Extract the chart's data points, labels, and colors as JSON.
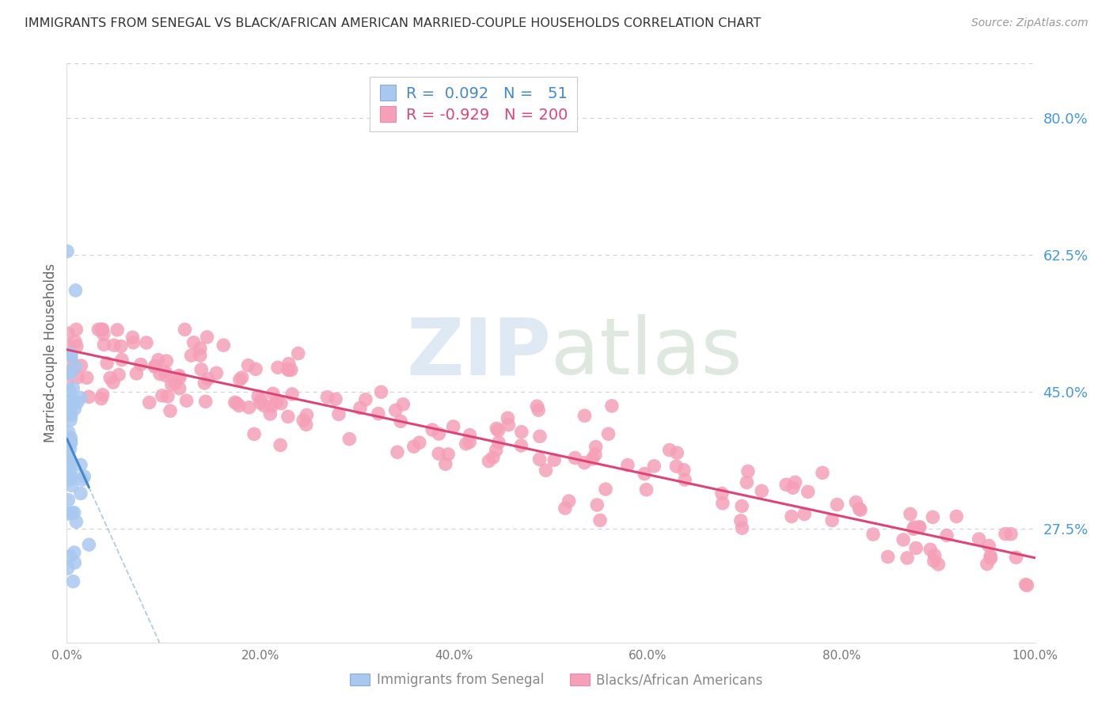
{
  "title": "IMMIGRANTS FROM SENEGAL VS BLACK/AFRICAN AMERICAN MARRIED-COUPLE HOUSEHOLDS CORRELATION CHART",
  "source": "Source: ZipAtlas.com",
  "ylabel": "Married-couple Households",
  "xlim": [
    0.0,
    100.0
  ],
  "ylim": [
    13.0,
    87.0
  ],
  "yticks": [
    27.5,
    45.0,
    62.5,
    80.0
  ],
  "xticks": [
    0.0,
    20.0,
    40.0,
    60.0,
    80.0,
    100.0
  ],
  "blue_R": 0.092,
  "blue_N": 51,
  "pink_R": -0.929,
  "pink_N": 200,
  "blue_color": "#a8c8f0",
  "pink_color": "#f5a0b8",
  "blue_line_color": "#4488cc",
  "pink_line_color": "#dd4477",
  "right_tick_color": "#4499dd",
  "grid_color": "#cccccc",
  "background_color": "#ffffff",
  "watermark_zip_color": "#c5d8ea",
  "watermark_atlas_color": "#b8ccb8"
}
